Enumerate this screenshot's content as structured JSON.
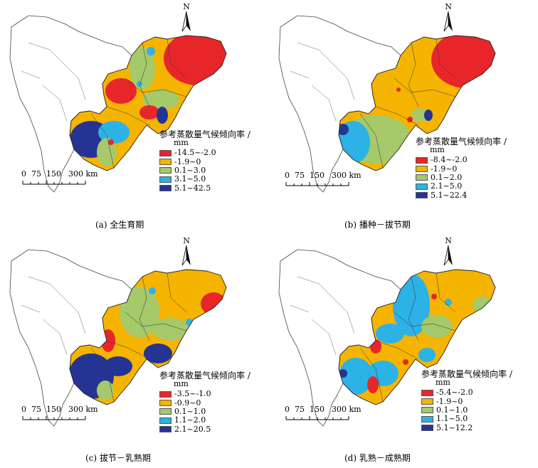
{
  "legend_title": "参考蒸散量气候倾向率 /",
  "legend_unit": "mm",
  "north_label": "N",
  "scale_labels": [
    "0",
    "75",
    "150",
    "300 km"
  ],
  "colors": {
    "c1": "#e8262a",
    "c2": "#f5b400",
    "c3": "#a6c96a",
    "c4": "#2db2e6",
    "c5": "#253494"
  },
  "panels": [
    {
      "caption": "(a)  全生育期",
      "classes": [
        "-14.5~-2.0",
        "-1.9~0",
        "0.1~3.0",
        "3.1~5.0",
        "5.1~42.5"
      ]
    },
    {
      "caption": "(b)  播种－拔节期",
      "classes": [
        "-8.4~-2.0",
        "-1.9~0",
        "0.1~2.0",
        "2.1~5.0",
        "5.1~22.4"
      ]
    },
    {
      "caption": "(c)  拔节－乳熟期",
      "classes": [
        "-3.5~-1.0",
        "-0.9~0",
        "0.1~1.0",
        "1.1~2.0",
        "2.1~20.5"
      ]
    },
    {
      "caption": "(d)  乳熟－成熟期",
      "classes": [
        "-5.4~-2.0",
        "-1.9~0",
        "0.1~1.0",
        "1.1~5.0",
        "5.1~12.2"
      ]
    }
  ]
}
